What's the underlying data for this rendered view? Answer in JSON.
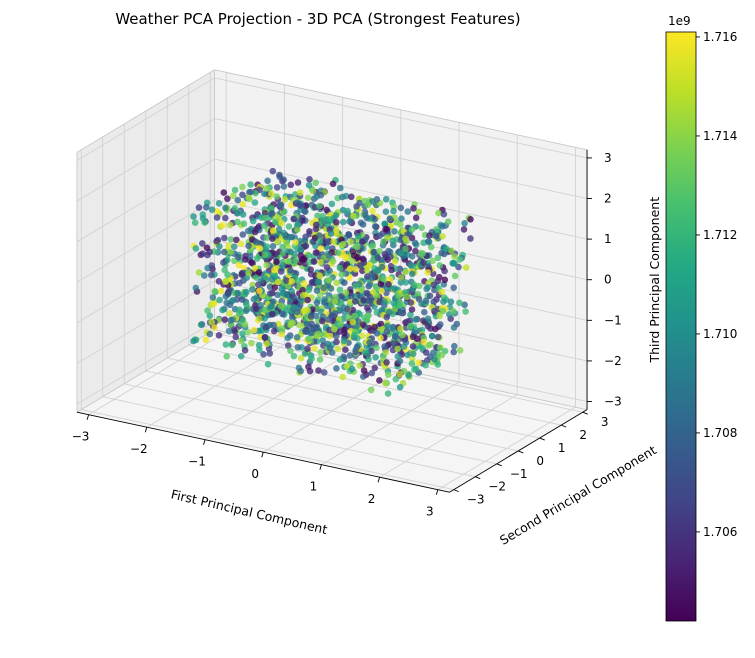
{
  "chart_data": {
    "type": "scatter",
    "projection": "3d",
    "title": "Weather PCA Projection - 3D PCA (Strongest Features)",
    "xlabel": "First Principal Component",
    "ylabel": "Second Principal Component",
    "zlabel": "Third Principal Component",
    "xlim": [
      -3.2,
      3.2
    ],
    "ylim": [
      -3.2,
      3.2
    ],
    "zlim": [
      -3.2,
      3.2
    ],
    "xticks": [
      "−3",
      "−2",
      "−1",
      "0",
      "1",
      "2",
      "3"
    ],
    "yticks": [
      "−3",
      "−2",
      "−1",
      "0",
      "1",
      "2",
      "3"
    ],
    "zticks": [
      "−3",
      "−2",
      "−1",
      "0",
      "1",
      "2",
      "3"
    ],
    "xtick_values": [
      -3,
      -2,
      -1,
      0,
      1,
      2,
      3
    ],
    "ytick_values": [
      -3,
      -2,
      -1,
      0,
      1,
      2,
      3
    ],
    "ztick_values": [
      -3,
      -2,
      -1,
      0,
      1,
      2,
      3
    ],
    "grid": true,
    "colormap": "viridis",
    "colorbar": {
      "range": [
        1.7042,
        1.7161
      ],
      "ticks": [
        "1.706",
        "1.708",
        "1.710",
        "1.712",
        "1.714",
        "1.716"
      ],
      "tick_values": [
        1.706,
        1.708,
        1.71,
        1.712,
        1.714,
        1.716
      ],
      "exponent": "1e9"
    },
    "point_cloud": {
      "count": 1800,
      "distribution": "uniform within cube",
      "extent": [
        -1.8,
        1.8
      ]
    }
  }
}
